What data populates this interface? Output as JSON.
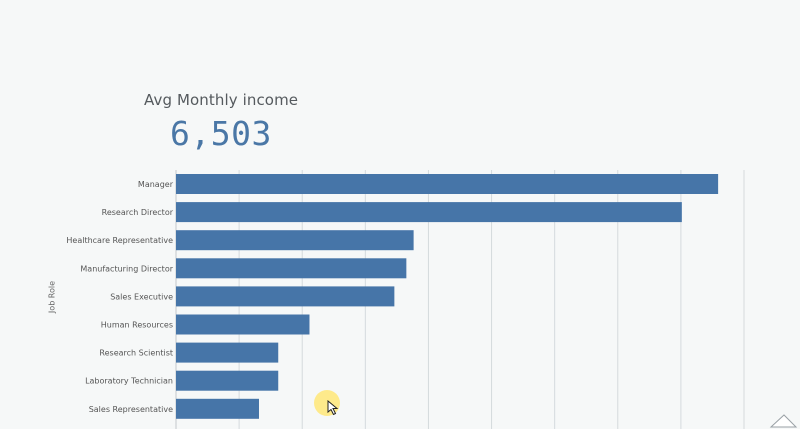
{
  "kpi": {
    "label": "Avg Monthly income",
    "value": "6,503"
  },
  "colors": {
    "bar": "#4675a8",
    "kpi_value": "#4a77a6",
    "grid": "#d5dadd",
    "background": "#f6f8f8"
  },
  "chart_data": {
    "type": "bar",
    "orientation": "horizontal",
    "ylabel": "Job Role",
    "xlabel": "",
    "categories": [
      "Manager",
      "Research Director",
      "Healthcare Representative",
      "Manufacturing Director",
      "Sales Executive",
      "Human Resources",
      "Research Scientist",
      "Laboratory Technician",
      "Sales Representative"
    ],
    "values": [
      17180,
      16030,
      7530,
      7300,
      6920,
      4230,
      3240,
      3240,
      2630
    ],
    "xlim": [
      0,
      18000
    ],
    "grid": true
  }
}
